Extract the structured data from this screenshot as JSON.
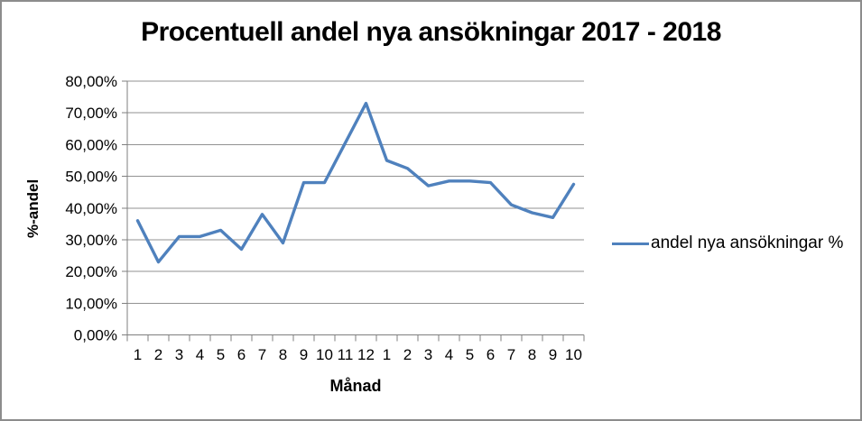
{
  "chart_data": {
    "type": "line",
    "title": "Procentuell andel nya ansökningar 2017 - 2018",
    "xlabel": "Månad",
    "ylabel": "%-andel",
    "categories": [
      "1",
      "2",
      "3",
      "4",
      "5",
      "6",
      "7",
      "8",
      "9",
      "10",
      "11",
      "12",
      "1",
      "2",
      "3",
      "4",
      "5",
      "6",
      "7",
      "8",
      "9",
      "10"
    ],
    "series": [
      {
        "name": "andel nya ansökningar %",
        "color": "#4F81BD",
        "values": [
          36,
          23,
          31,
          31,
          33,
          27,
          38,
          29,
          48,
          48,
          60.5,
          73,
          55,
          52.5,
          47,
          48.5,
          48.5,
          48,
          41,
          38.5,
          37,
          47.5
        ]
      }
    ],
    "ylim": [
      0,
      80
    ],
    "y_tick_step": 10,
    "y_tick_labels": [
      "0,00%",
      "10,00%",
      "20,00%",
      "30,00%",
      "40,00%",
      "50,00%",
      "60,00%",
      "70,00%",
      "80,00%"
    ],
    "grid": "horizontal",
    "legend_position": "right"
  },
  "colors": {
    "grid": "#929292",
    "axis": "#7F7F7F",
    "window_border": "#8C8C8C"
  }
}
